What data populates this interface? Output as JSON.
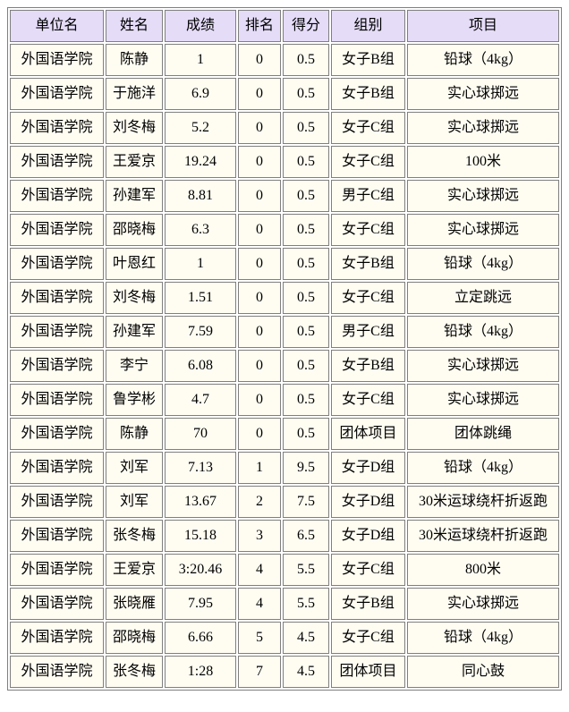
{
  "page": {
    "background": "#ffffff"
  },
  "table": {
    "colors": {
      "header_bg": "#e5dcf8",
      "cell_bg": "#fffdf2",
      "border": "#7f7f7f",
      "text": "#000000"
    },
    "columns": [
      {
        "id": "unit",
        "label": "单位名"
      },
      {
        "id": "name",
        "label": "姓名"
      },
      {
        "id": "score",
        "label": "成绩"
      },
      {
        "id": "rank",
        "label": "排名"
      },
      {
        "id": "points",
        "label": "得分"
      },
      {
        "id": "group",
        "label": "组别"
      },
      {
        "id": "event",
        "label": "项目"
      }
    ],
    "rows": [
      [
        "外国语学院",
        "陈静",
        "1",
        "0",
        "0.5",
        "女子B组",
        "铅球（4kg）"
      ],
      [
        "外国语学院",
        "于施洋",
        "6.9",
        "0",
        "0.5",
        "女子B组",
        "实心球掷远"
      ],
      [
        "外国语学院",
        "刘冬梅",
        "5.2",
        "0",
        "0.5",
        "女子C组",
        "实心球掷远"
      ],
      [
        "外国语学院",
        "王爱京",
        "19.24",
        "0",
        "0.5",
        "女子C组",
        "100米"
      ],
      [
        "外国语学院",
        "孙建军",
        "8.81",
        "0",
        "0.5",
        "男子C组",
        "实心球掷远"
      ],
      [
        "外国语学院",
        "邵晓梅",
        "6.3",
        "0",
        "0.5",
        "女子C组",
        "实心球掷远"
      ],
      [
        "外国语学院",
        "叶恩红",
        "1",
        "0",
        "0.5",
        "女子B组",
        "铅球（4kg）"
      ],
      [
        "外国语学院",
        "刘冬梅",
        "1.51",
        "0",
        "0.5",
        "女子C组",
        "立定跳远"
      ],
      [
        "外国语学院",
        "孙建军",
        "7.59",
        "0",
        "0.5",
        "男子C组",
        "铅球（4kg）"
      ],
      [
        "外国语学院",
        "李宁",
        "6.08",
        "0",
        "0.5",
        "女子B组",
        "实心球掷远"
      ],
      [
        "外国语学院",
        "鲁学彬",
        "4.7",
        "0",
        "0.5",
        "女子C组",
        "实心球掷远"
      ],
      [
        "外国语学院",
        "陈静",
        "70",
        "0",
        "0.5",
        "团体项目",
        "团体跳绳"
      ],
      [
        "外国语学院",
        "刘军",
        "7.13",
        "1",
        "9.5",
        "女子D组",
        "铅球（4kg）"
      ],
      [
        "外国语学院",
        "刘军",
        "13.67",
        "2",
        "7.5",
        "女子D组",
        "30米运球绕杆折返跑"
      ],
      [
        "外国语学院",
        "张冬梅",
        "15.18",
        "3",
        "6.5",
        "女子D组",
        "30米运球绕杆折返跑"
      ],
      [
        "外国语学院",
        "王爱京",
        "3:20.46",
        "4",
        "5.5",
        "女子C组",
        "800米"
      ],
      [
        "外国语学院",
        "张晓雁",
        "7.95",
        "4",
        "5.5",
        "女子B组",
        "实心球掷远"
      ],
      [
        "外国语学院",
        "邵晓梅",
        "6.66",
        "5",
        "4.5",
        "女子C组",
        "铅球（4kg）"
      ],
      [
        "外国语学院",
        "张冬梅",
        "1:28",
        "7",
        "4.5",
        "团体项目",
        "同心鼓"
      ]
    ]
  }
}
